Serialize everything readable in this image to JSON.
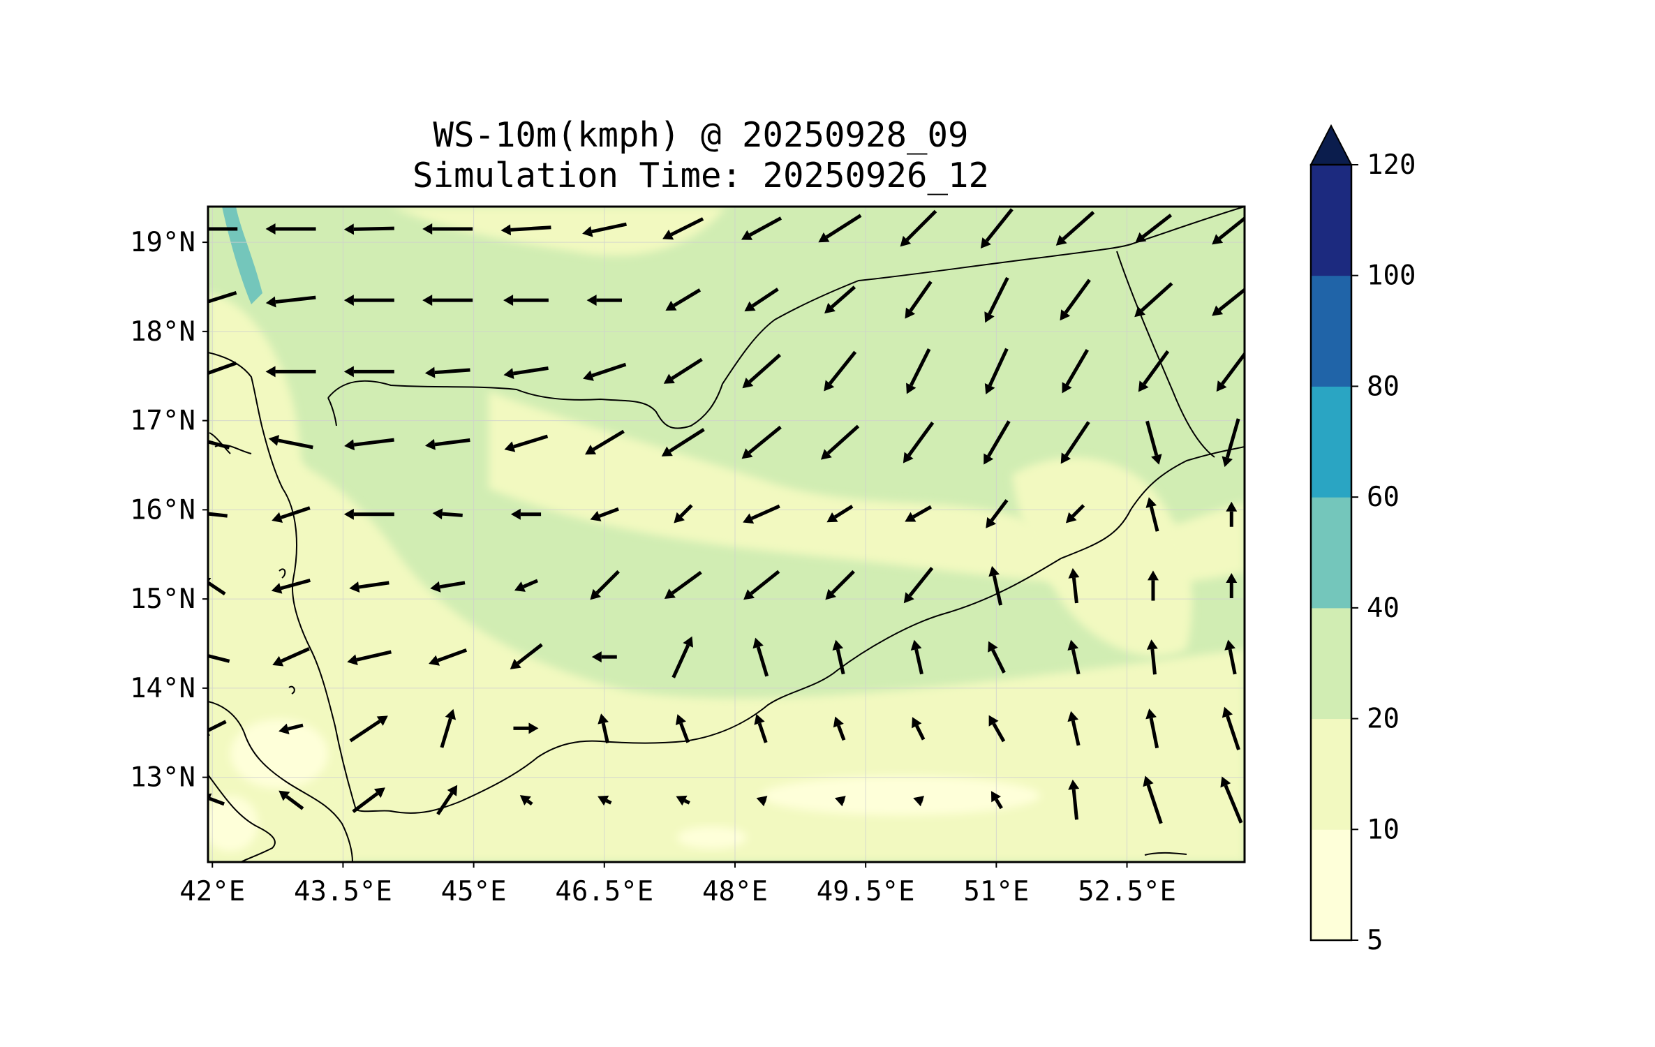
{
  "title": {
    "line1": "WS-10m(kmph) @ 20250928_09",
    "line2": "Simulation Time: 20250926_12"
  },
  "map": {
    "lon_range": [
      41.95,
      53.85
    ],
    "lat_range": [
      12.05,
      19.4
    ],
    "x_ticks": [
      {
        "value": 42.0,
        "label": "42°E"
      },
      {
        "value": 43.5,
        "label": "43.5°E"
      },
      {
        "value": 45.0,
        "label": "45°E"
      },
      {
        "value": 46.5,
        "label": "46.5°E"
      },
      {
        "value": 48.0,
        "label": "48°E"
      },
      {
        "value": 49.5,
        "label": "49.5°E"
      },
      {
        "value": 51.0,
        "label": "51°E"
      },
      {
        "value": 52.5,
        "label": "52.5°E"
      }
    ],
    "y_ticks": [
      {
        "value": 19,
        "label": "19°N"
      },
      {
        "value": 18,
        "label": "18°N"
      },
      {
        "value": 17,
        "label": "17°N"
      },
      {
        "value": 16,
        "label": "16°N"
      },
      {
        "value": 15,
        "label": "15°N"
      },
      {
        "value": 14,
        "label": "14°N"
      },
      {
        "value": 13,
        "label": "13°N"
      }
    ],
    "grid": true,
    "colors": {
      "band_5_10": "#feffd9",
      "band_10_20": "#f2f9c0",
      "band_20_40": "#d1edb3",
      "band_40_60": "#74c6bb",
      "band_60_80": "#2aa5c3",
      "band_80_100": "#2064a8",
      "band_100_120": "#1c2a7f",
      "extend_max": "#0b1d4d"
    }
  },
  "colorbar": {
    "levels": [
      "5",
      "10",
      "20",
      "40",
      "60",
      "80",
      "100",
      "120"
    ],
    "extend": "max",
    "colors": [
      "#feffd9",
      "#f2f9c0",
      "#d1edb3",
      "#74c6bb",
      "#2aa5c3",
      "#2064a8",
      "#1c2a7f"
    ],
    "extend_color": "#0b1d4d"
  },
  "chart_data": {
    "type": "vector-field",
    "variable": "WS-10m(kmph)",
    "grid_lon": [
      42.0,
      42.9,
      43.8,
      44.7,
      45.6,
      46.5,
      47.4,
      48.3,
      49.2,
      50.1,
      51.0,
      51.9,
      52.8,
      53.7
    ],
    "grid_lat": [
      19.15,
      18.35,
      17.55,
      16.75,
      15.95,
      15.15,
      14.35,
      13.55,
      12.75
    ],
    "vectors": [
      [
        [
          -90,
          0,
          1.0
        ],
        [
          -95,
          0,
          1.0
        ],
        [
          -90,
          -2,
          1.0
        ],
        [
          -90,
          0,
          1.0
        ],
        [
          -80,
          -5,
          1.0
        ],
        [
          -70,
          -15,
          0.9
        ],
        [
          -60,
          -30,
          0.9
        ],
        [
          -55,
          -30,
          0.9
        ],
        [
          -55,
          -35,
          1.0
        ],
        [
          -45,
          -45,
          1.0
        ],
        [
          -40,
          -50,
          1.0
        ],
        [
          -45,
          -40,
          1.0
        ],
        [
          -45,
          -35,
          0.9
        ],
        [
          -50,
          -40,
          1.0
        ]
      ],
      [
        [
          -80,
          -25,
          1.0
        ],
        [
          -90,
          -10,
          1.0
        ],
        [
          -85,
          0,
          1.0
        ],
        [
          -85,
          0,
          1.0
        ],
        [
          -70,
          0,
          0.9
        ],
        [
          -65,
          0,
          0.7
        ],
        [
          -50,
          -30,
          0.8
        ],
        [
          -45,
          -30,
          0.8
        ],
        [
          -40,
          -35,
          0.8
        ],
        [
          -35,
          -50,
          0.9
        ],
        [
          -30,
          -60,
          1.0
        ],
        [
          -40,
          -55,
          1.0
        ],
        [
          -50,
          -45,
          1.0
        ],
        [
          -50,
          -40,
          1.0
        ]
      ],
      [
        [
          -70,
          -25,
          1.0
        ],
        [
          -90,
          0,
          1.0
        ],
        [
          -90,
          0,
          1.0
        ],
        [
          -70,
          -5,
          0.9
        ],
        [
          -65,
          -10,
          0.9
        ],
        [
          -60,
          -20,
          0.9
        ],
        [
          -55,
          -35,
          0.9
        ],
        [
          -45,
          -40,
          1.0
        ],
        [
          -40,
          -50,
          1.0
        ],
        [
          -30,
          -60,
          1.0
        ],
        [
          -30,
          -65,
          1.0
        ],
        [
          -35,
          -60,
          1.0
        ],
        [
          -40,
          -55,
          1.0
        ],
        [
          -45,
          -60,
          1.0
        ]
      ],
      [
        [
          -55,
          15,
          0.7
        ],
        [
          -50,
          10,
          0.9
        ],
        [
          -80,
          -10,
          1.0
        ],
        [
          -80,
          -10,
          0.9
        ],
        [
          -65,
          -20,
          0.9
        ],
        [
          -50,
          -30,
          0.9
        ],
        [
          -55,
          -35,
          1.0
        ],
        [
          -55,
          -45,
          1.0
        ],
        [
          -50,
          -45,
          1.0
        ],
        [
          -40,
          -55,
          1.0
        ],
        [
          -35,
          -60,
          1.0
        ],
        [
          -40,
          -60,
          1.0
        ],
        [
          15,
          -55,
          0.9
        ],
        [
          -20,
          -70,
          1.0
        ]
      ],
      [
        [
          -45,
          5,
          0.6
        ],
        [
          -60,
          -20,
          0.8
        ],
        [
          -90,
          0,
          1.0
        ],
        [
          -65,
          5,
          0.6
        ],
        [
          -55,
          0,
          0.6
        ],
        [
          -40,
          -15,
          0.6
        ],
        [
          -20,
          -20,
          0.5
        ],
        [
          -45,
          -20,
          0.8
        ],
        [
          -40,
          -25,
          0.6
        ],
        [
          -35,
          -20,
          0.6
        ],
        [
          -30,
          -40,
          0.7
        ],
        [
          -25,
          -25,
          0.5
        ],
        [
          -10,
          40,
          0.7
        ],
        [
          0,
          45,
          0.5
        ]
      ],
      [
        [
          -30,
          20,
          0.6
        ],
        [
          -55,
          -15,
          0.8
        ],
        [
          -70,
          -10,
          0.8
        ],
        [
          -60,
          -10,
          0.7
        ],
        [
          -35,
          -15,
          0.5
        ],
        [
          -40,
          -40,
          0.8
        ],
        [
          -55,
          -40,
          0.9
        ],
        [
          -50,
          -40,
          0.9
        ],
        [
          -40,
          -40,
          0.8
        ],
        [
          -40,
          -50,
          0.9
        ],
        [
          -10,
          45,
          0.8
        ],
        [
          -5,
          45,
          0.7
        ],
        [
          0,
          45,
          0.6
        ],
        [
          0,
          40,
          0.5
        ]
      ],
      [
        [
          -40,
          10,
          0.7
        ],
        [
          -45,
          -20,
          0.8
        ],
        [
          -65,
          -15,
          0.9
        ],
        [
          -55,
          -20,
          0.8
        ],
        [
          -45,
          -35,
          0.8
        ],
        [
          -45,
          0,
          0.5
        ],
        [
          25,
          55,
          0.9
        ],
        [
          -15,
          50,
          0.8
        ],
        [
          -10,
          45,
          0.7
        ],
        [
          -10,
          45,
          0.7
        ],
        [
          -20,
          40,
          0.7
        ],
        [
          -10,
          45,
          0.7
        ],
        [
          -5,
          50,
          0.7
        ],
        [
          -10,
          50,
          0.7
        ]
      ],
      [
        [
          -40,
          -20,
          0.6
        ],
        [
          -40,
          -10,
          0.5
        ],
        [
          45,
          30,
          0.9
        ],
        [
          15,
          50,
          0.8
        ],
        [
          45,
          0,
          0.5
        ],
        [
          -10,
          45,
          0.6
        ],
        [
          -15,
          40,
          0.6
        ],
        [
          -15,
          45,
          0.6
        ],
        [
          -15,
          40,
          0.5
        ],
        [
          -15,
          30,
          0.5
        ],
        [
          -20,
          35,
          0.6
        ],
        [
          -10,
          45,
          0.7
        ],
        [
          -10,
          50,
          0.8
        ],
        [
          -20,
          60,
          0.9
        ]
      ],
      [
        [
          -40,
          15,
          0.5
        ],
        [
          -40,
          30,
          0.6
        ],
        [
          40,
          30,
          0.8
        ],
        [
          30,
          45,
          0.7
        ],
        [
          -20,
          15,
          0.3
        ],
        [
          -20,
          10,
          0.3
        ],
        [
          -20,
          10,
          0.3
        ],
        [
          -15,
          5,
          0.2
        ],
        [
          -15,
          5,
          0.2
        ],
        [
          -15,
          5,
          0.2
        ],
        [
          -15,
          25,
          0.4
        ],
        [
          -5,
          50,
          0.8
        ],
        [
          -20,
          60,
          1.0
        ],
        [
          -25,
          60,
          1.0
        ]
      ]
    ]
  }
}
